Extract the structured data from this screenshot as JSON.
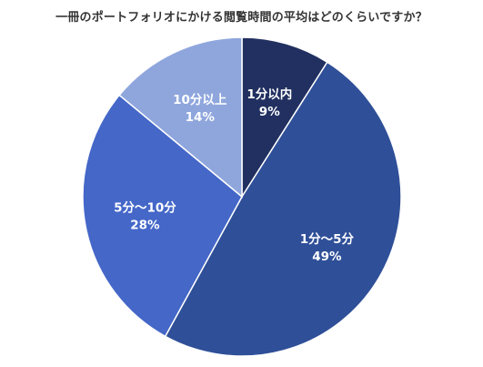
{
  "chart_data": {
    "type": "pie",
    "title": "一冊のポートフォリオにかける閲覧時間の平均はどのくらいですか？",
    "slices": [
      {
        "label": "1分以内",
        "value": 9,
        "value_label": "9%",
        "color": "#213060"
      },
      {
        "label": "1分〜5分",
        "value": 49,
        "value_label": "49%",
        "color": "#2f4f98"
      },
      {
        "label": "5分〜10分",
        "value": 28,
        "value_label": "28%",
        "color": "#4467c8"
      },
      {
        "label": "10分以上",
        "value": 14,
        "value_label": "14%",
        "color": "#8fa6dd"
      }
    ],
    "start_angle_deg": 0,
    "direction": "clockwise",
    "legend": "none"
  }
}
